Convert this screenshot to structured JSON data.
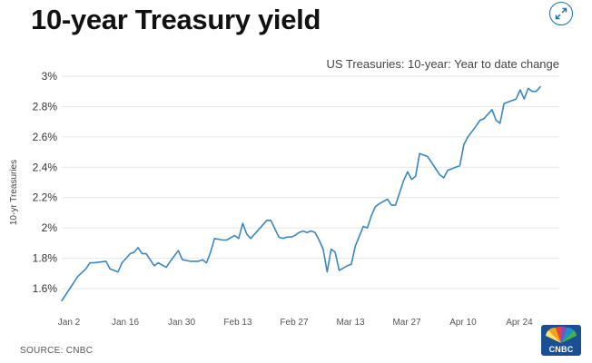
{
  "header": {
    "title": "10-year Treasury yield",
    "subtitle": "US Treasuries: 10-year: Year to date change"
  },
  "footer": {
    "source": "SOURCE: CNBC",
    "logo_text": "CNBC"
  },
  "icons": {
    "expand": "expand-arrows-icon",
    "logo": "nbc-peacock-icon"
  },
  "colors": {
    "line": "#3a87c0",
    "grid": "#e6e6e6",
    "text": "#333333"
  },
  "chart_data": {
    "type": "line",
    "title": "10-year Treasury yield",
    "subtitle": "US Treasuries: 10-year: Year to date change",
    "ylabel": "10-yr Treasuries",
    "xlabel": "",
    "x_ticks": [
      "Jan 2",
      "Jan 16",
      "Jan 30",
      "Feb 13",
      "Feb 27",
      "Mar 13",
      "Mar 27",
      "Apr 10",
      "Apr 24"
    ],
    "y_ticks": [
      "1.6%",
      "1.8%",
      "2%",
      "2.2%",
      "2.4%",
      "2.6%",
      "2.8%",
      "3%"
    ],
    "ylim": [
      1.6,
      3.0
    ],
    "grid": true,
    "x_day_range": [
      1,
      120
    ],
    "series": [
      {
        "name": "10-year Treasury yield",
        "x_day": [
          1,
          3,
          5,
          7,
          8,
          9,
          12,
          13,
          15,
          16,
          18,
          19,
          20,
          21,
          22,
          24,
          25,
          27,
          28,
          30,
          31,
          33,
          34,
          35,
          36,
          37,
          38,
          39,
          41,
          42,
          44,
          45,
          46,
          47,
          48,
          49,
          50,
          52,
          53,
          55,
          56,
          57,
          58,
          59,
          60,
          61,
          62,
          63,
          64,
          65,
          66,
          67,
          68,
          69,
          70,
          72,
          73,
          74,
          76,
          77,
          78,
          79,
          80,
          82,
          83,
          84,
          85,
          86,
          87,
          88,
          89,
          90,
          91,
          92,
          94,
          95,
          96,
          97,
          98,
          99,
          100,
          101,
          102,
          104,
          105,
          106,
          107,
          108,
          109,
          110,
          111,
          112,
          113,
          114,
          115,
          116,
          117,
          118,
          119,
          120
        ],
        "values": [
          1.52,
          1.6,
          1.68,
          1.73,
          1.77,
          1.77,
          1.78,
          1.73,
          1.71,
          1.77,
          1.83,
          1.84,
          1.87,
          1.83,
          1.83,
          1.75,
          1.77,
          1.74,
          1.78,
          1.85,
          1.79,
          1.78,
          1.78,
          1.78,
          1.79,
          1.77,
          1.84,
          1.93,
          1.92,
          1.92,
          1.95,
          1.93,
          2.03,
          1.96,
          1.93,
          1.96,
          1.99,
          2.05,
          2.05,
          1.94,
          1.93,
          1.94,
          1.94,
          1.95,
          1.97,
          1.98,
          1.97,
          1.98,
          1.97,
          1.92,
          1.86,
          1.71,
          1.86,
          1.84,
          1.72,
          1.75,
          1.76,
          1.88,
          2.01,
          2.0,
          2.08,
          2.14,
          2.16,
          2.19,
          2.15,
          2.15,
          2.23,
          2.31,
          2.37,
          2.32,
          2.34,
          2.49,
          2.48,
          2.47,
          2.39,
          2.35,
          2.33,
          2.38,
          2.39,
          2.4,
          2.41,
          2.55,
          2.6,
          2.67,
          2.71,
          2.72,
          2.75,
          2.78,
          2.71,
          2.69,
          2.82,
          2.83,
          2.84,
          2.85,
          2.91,
          2.85,
          2.92,
          2.9,
          2.9,
          2.93
        ]
      }
    ]
  }
}
